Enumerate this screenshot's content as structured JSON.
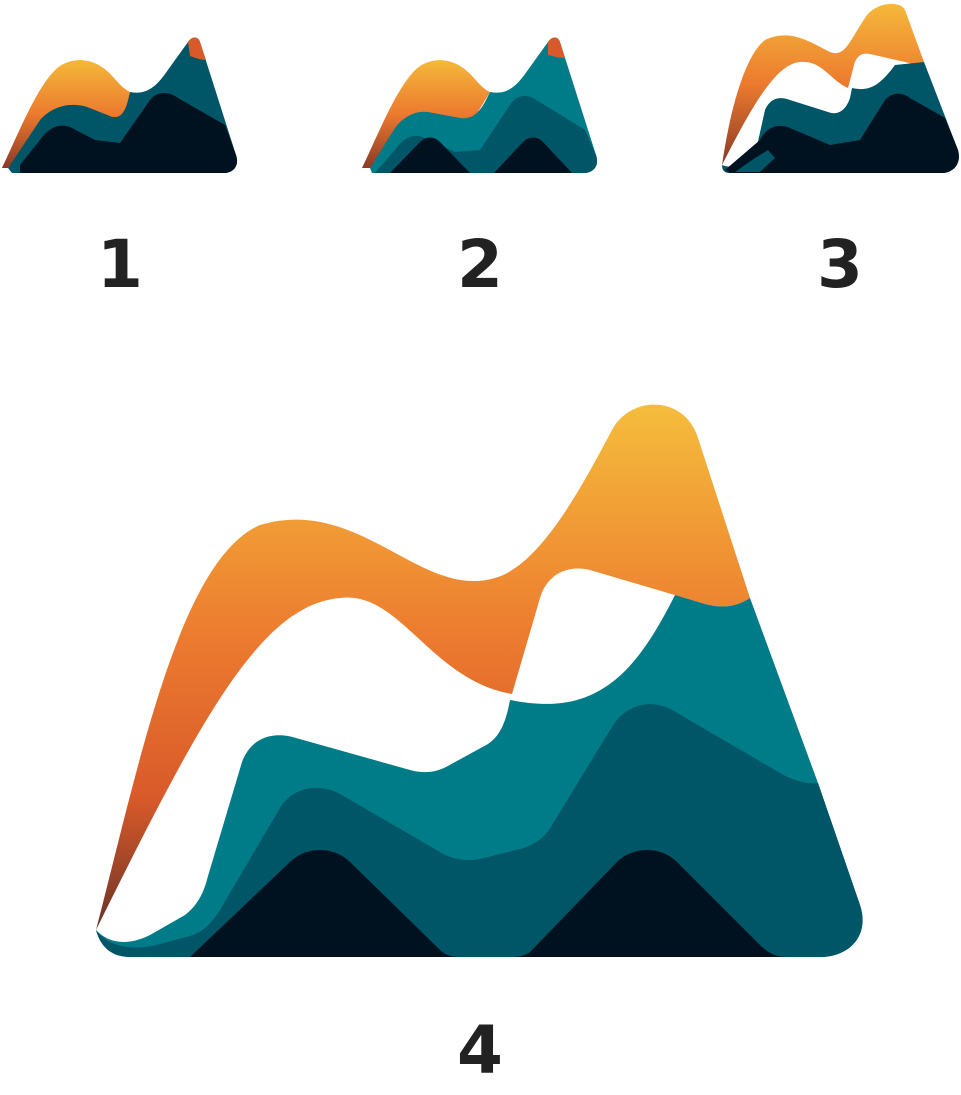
{
  "variants": [
    {
      "number": "1"
    },
    {
      "number": "2"
    },
    {
      "number": "3"
    },
    {
      "number": "4"
    }
  ],
  "colors": {
    "navy": "#00121f",
    "deep-teal": "#005567",
    "teal": "#007b88",
    "orange": "#ec7a2f",
    "yellow": "#f5b83a",
    "red-orange": "#d85a2a",
    "brown": "#7a3a2a",
    "label": "#222222"
  }
}
